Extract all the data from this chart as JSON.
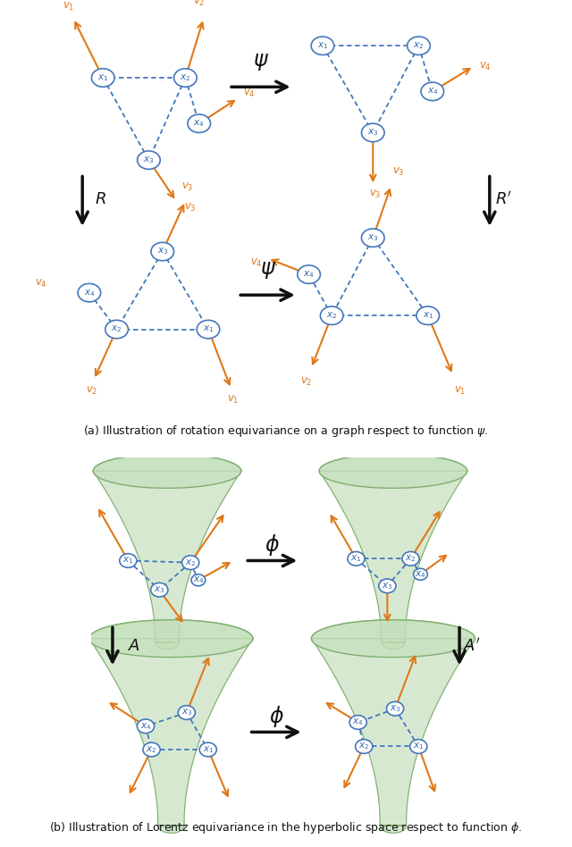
{
  "bg_color": "#ffffff",
  "node_color": "#ffffff",
  "node_edge_color": "#4477bb",
  "edge_color": "#4477bb",
  "arrow_color": "#e07818",
  "black_color": "#111111",
  "text_orange": "#e07818",
  "text_blue": "#3366aa",
  "cone_fill": "#c5e0bc",
  "cone_edge": "#7aaa6a",
  "caption_a": "(a) Illustration of rotation equivariance on a graph respect to function $\\psi$.",
  "caption_b": "(b) Illustration of Lorentz equivariance in the hyperbolic space respect to function $\\phi$."
}
